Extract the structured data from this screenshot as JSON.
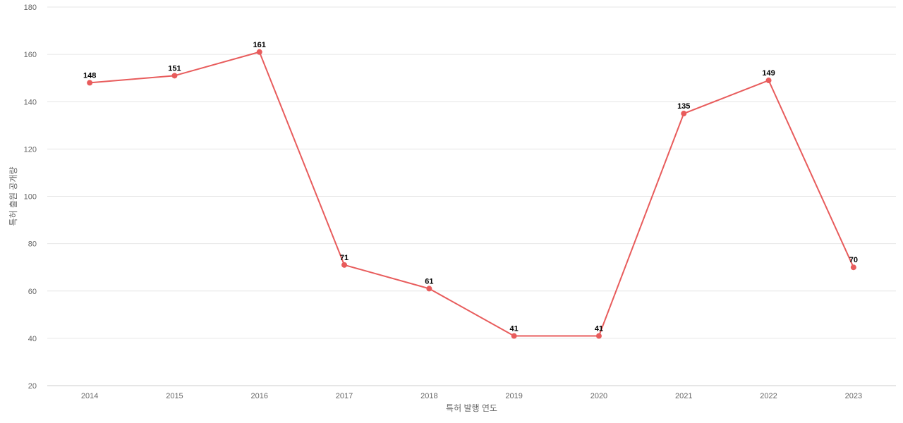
{
  "chart_data": {
    "type": "line",
    "title": "",
    "xlabel": "특허 발행 연도",
    "ylabel": "특허 출원 공개량",
    "categories": [
      "2014",
      "2015",
      "2016",
      "2017",
      "2018",
      "2019",
      "2020",
      "2021",
      "2022",
      "2023"
    ],
    "series": [
      {
        "values": [
          148,
          151,
          161,
          71,
          61,
          41,
          41,
          135,
          149,
          70
        ],
        "color": "#e85c5c"
      }
    ],
    "ylim": [
      20,
      180
    ],
    "yticks": [
      20,
      40,
      60,
      80,
      100,
      120,
      140,
      160,
      180
    ],
    "grid": true,
    "legend": "none",
    "data_labels": true
  }
}
